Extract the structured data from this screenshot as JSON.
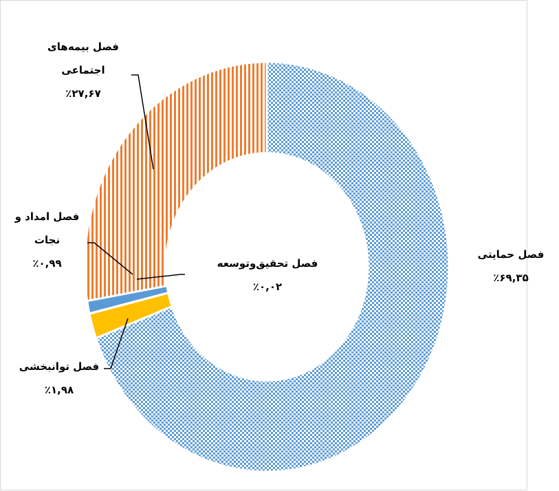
{
  "chart_data": {
    "type": "donut",
    "categories": [
      "فصل حمایتی",
      "فصل توانبخشی",
      "فصل تحقیق‌وتوسعه",
      "فصل امداد و نجات",
      "فصل بیمه‌های اجتماعی"
    ],
    "values": [
      69.35,
      1.98,
      0.02,
      0.99,
      27.67
    ],
    "value_labels": [
      "٪۶۹,۳۵",
      "٪۱,۹۸",
      "٪۰,۰۲",
      "٪۰,۹۹",
      "٪۲۷,۶۷"
    ],
    "colors": [
      "#5b9bd5",
      "#ffc000",
      "#a5a5a5",
      "#5b9bd5",
      "#ed7d31"
    ],
    "patterns": [
      "check",
      "solid",
      "solid",
      "solid",
      "vstripe"
    ]
  }
}
